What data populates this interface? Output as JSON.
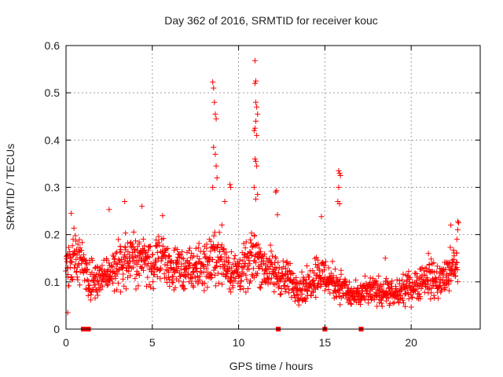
{
  "chart_data": {
    "type": "scatter",
    "title": "Day 362 of 2016, SRMTID for receiver kouc",
    "xlabel": "GPS time / hours",
    "ylabel": "SRMTID / TECUs",
    "xlim": [
      0,
      24
    ],
    "ylim": [
      0,
      0.6
    ],
    "xticks": [
      0,
      5,
      10,
      15,
      20
    ],
    "yticks": [
      0,
      0.1,
      0.2,
      0.3,
      0.4,
      0.5,
      0.6
    ],
    "grid": true,
    "marker": "+",
    "color": "#ff0000",
    "series": [
      {
        "name": "SRMTID",
        "profile": [
          [
            0.0,
            0.13
          ],
          [
            0.5,
            0.15
          ],
          [
            1.0,
            0.14
          ],
          [
            1.5,
            0.1
          ],
          [
            2.0,
            0.11
          ],
          [
            2.5,
            0.12
          ],
          [
            3.0,
            0.13
          ],
          [
            3.5,
            0.16
          ],
          [
            4.0,
            0.15
          ],
          [
            4.5,
            0.15
          ],
          [
            5.0,
            0.14
          ],
          [
            5.5,
            0.15
          ],
          [
            6.0,
            0.13
          ],
          [
            6.5,
            0.13
          ],
          [
            7.0,
            0.12
          ],
          [
            7.5,
            0.13
          ],
          [
            8.0,
            0.13
          ],
          [
            8.5,
            0.15
          ],
          [
            9.0,
            0.16
          ],
          [
            9.5,
            0.12
          ],
          [
            10.0,
            0.12
          ],
          [
            10.5,
            0.13
          ],
          [
            11.0,
            0.16
          ],
          [
            11.5,
            0.13
          ],
          [
            12.0,
            0.12
          ],
          [
            12.5,
            0.11
          ],
          [
            13.0,
            0.1
          ],
          [
            13.5,
            0.09
          ],
          [
            14.0,
            0.09
          ],
          [
            14.5,
            0.12
          ],
          [
            15.0,
            0.11
          ],
          [
            15.5,
            0.1
          ],
          [
            16.0,
            0.09
          ],
          [
            16.5,
            0.07
          ],
          [
            17.0,
            0.07
          ],
          [
            17.5,
            0.08
          ],
          [
            18.0,
            0.08
          ],
          [
            18.5,
            0.08
          ],
          [
            19.0,
            0.07
          ],
          [
            19.5,
            0.08
          ],
          [
            20.0,
            0.09
          ],
          [
            20.5,
            0.1
          ],
          [
            21.0,
            0.11
          ],
          [
            21.5,
            0.1
          ],
          [
            22.0,
            0.11
          ],
          [
            22.5,
            0.13
          ],
          [
            22.7,
            0.13
          ]
        ],
        "spikes": [
          [
            0.3,
            0.245
          ],
          [
            0.1,
            0.035
          ],
          [
            2.5,
            0.253
          ],
          [
            3.4,
            0.27
          ],
          [
            4.4,
            0.26
          ],
          [
            5.6,
            0.24
          ],
          [
            8.5,
            0.523
          ],
          [
            8.55,
            0.51
          ],
          [
            8.6,
            0.48
          ],
          [
            8.65,
            0.455
          ],
          [
            8.7,
            0.445
          ],
          [
            8.55,
            0.385
          ],
          [
            8.65,
            0.37
          ],
          [
            8.7,
            0.345
          ],
          [
            8.75,
            0.32
          ],
          [
            8.5,
            0.3
          ],
          [
            9.5,
            0.306
          ],
          [
            9.55,
            0.3
          ],
          [
            9.2,
            0.27
          ],
          [
            10.95,
            0.568
          ],
          [
            11.0,
            0.525
          ],
          [
            10.95,
            0.52
          ],
          [
            11.0,
            0.48
          ],
          [
            11.05,
            0.47
          ],
          [
            11.1,
            0.455
          ],
          [
            11.0,
            0.44
          ],
          [
            10.95,
            0.425
          ],
          [
            10.9,
            0.42
          ],
          [
            11.05,
            0.41
          ],
          [
            10.95,
            0.36
          ],
          [
            11.0,
            0.355
          ],
          [
            11.05,
            0.345
          ],
          [
            10.9,
            0.3
          ],
          [
            11.1,
            0.285
          ],
          [
            11.0,
            0.275
          ],
          [
            12.2,
            0.293
          ],
          [
            12.15,
            0.29
          ],
          [
            12.25,
            0.242
          ],
          [
            14.8,
            0.238
          ],
          [
            15.8,
            0.335
          ],
          [
            15.85,
            0.33
          ],
          [
            15.9,
            0.325
          ],
          [
            15.8,
            0.3
          ],
          [
            15.75,
            0.27
          ],
          [
            15.85,
            0.265
          ],
          [
            18.5,
            0.15
          ],
          [
            21.0,
            0.16
          ],
          [
            22.7,
            0.228
          ],
          [
            22.75,
            0.225
          ],
          [
            22.7,
            0.21
          ],
          [
            22.65,
            0.19
          ],
          [
            22.3,
            0.22
          ]
        ]
      }
    ],
    "zero_markers_x": [
      1.0,
      1.1,
      1.3,
      12.3,
      15.0,
      17.1
    ]
  }
}
